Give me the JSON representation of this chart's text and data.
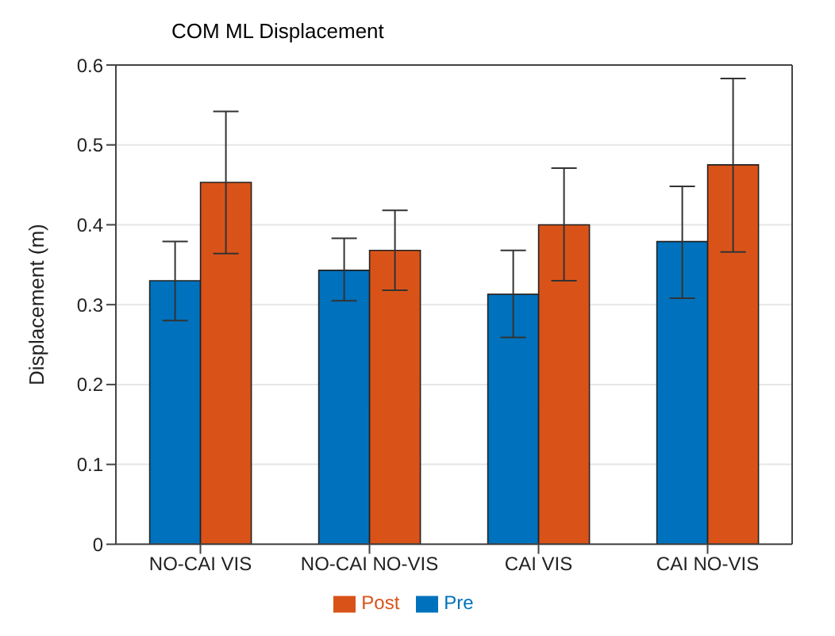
{
  "chart_data": {
    "type": "bar",
    "title": "COM ML Displacement",
    "ylabel": "Displacement (m)",
    "categories": [
      "NO-CAI VIS",
      "NO-CAI NO-VIS",
      "CAI VIS",
      "CAI NO-VIS"
    ],
    "series": [
      {
        "name": "Pre",
        "color": "#0072bd",
        "values": [
          0.33,
          0.343,
          0.313,
          0.379
        ],
        "errors": [
          [
            0.28,
            0.379
          ],
          [
            0.305,
            0.383
          ],
          [
            0.259,
            0.368
          ],
          [
            0.308,
            0.448
          ]
        ]
      },
      {
        "name": "Post",
        "color": "#d95319",
        "values": [
          0.453,
          0.368,
          0.4,
          0.475
        ],
        "errors": [
          [
            0.364,
            0.542
          ],
          [
            0.318,
            0.418
          ],
          [
            0.33,
            0.471
          ],
          [
            0.366,
            0.583
          ]
        ]
      }
    ],
    "ylim": [
      0,
      0.6
    ],
    "yticks": [
      0,
      0.1,
      0.2,
      0.3,
      0.4,
      0.5,
      0.6
    ],
    "grid": "y",
    "legend": "bottom"
  }
}
